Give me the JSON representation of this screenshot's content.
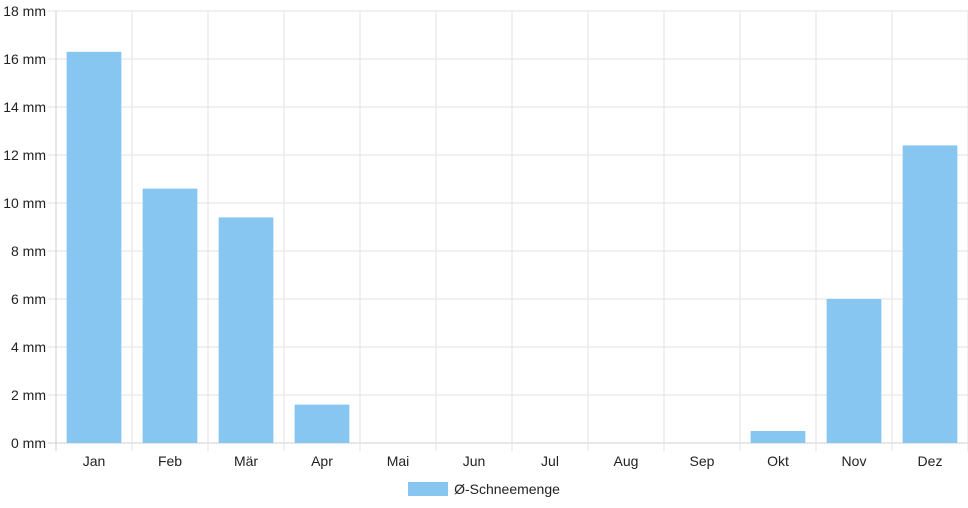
{
  "chart_data": {
    "type": "bar",
    "categories": [
      "Jan",
      "Feb",
      "Mär",
      "Apr",
      "Mai",
      "Jun",
      "Jul",
      "Aug",
      "Sep",
      "Okt",
      "Nov",
      "Dez"
    ],
    "series": [
      {
        "name": "Ø-Schneemenge",
        "values": [
          16.3,
          10.6,
          9.4,
          1.6,
          0,
          0,
          0,
          0,
          0,
          0.5,
          6.0,
          12.4
        ],
        "color": "#88c6f2"
      }
    ],
    "y_unit": "mm",
    "ylim": [
      0,
      18
    ],
    "yticks": [
      "0 mm",
      "2 mm",
      "4 mm",
      "6 mm",
      "8 mm",
      "10 mm",
      "12 mm",
      "14 mm",
      "16 mm",
      "18 mm"
    ],
    "grid": true,
    "legend_position": "bottom",
    "colors": {
      "bar": "#88c6f2",
      "grid": "#e3e3e3",
      "axis": "#cfcfcf",
      "text": "#222222"
    }
  }
}
